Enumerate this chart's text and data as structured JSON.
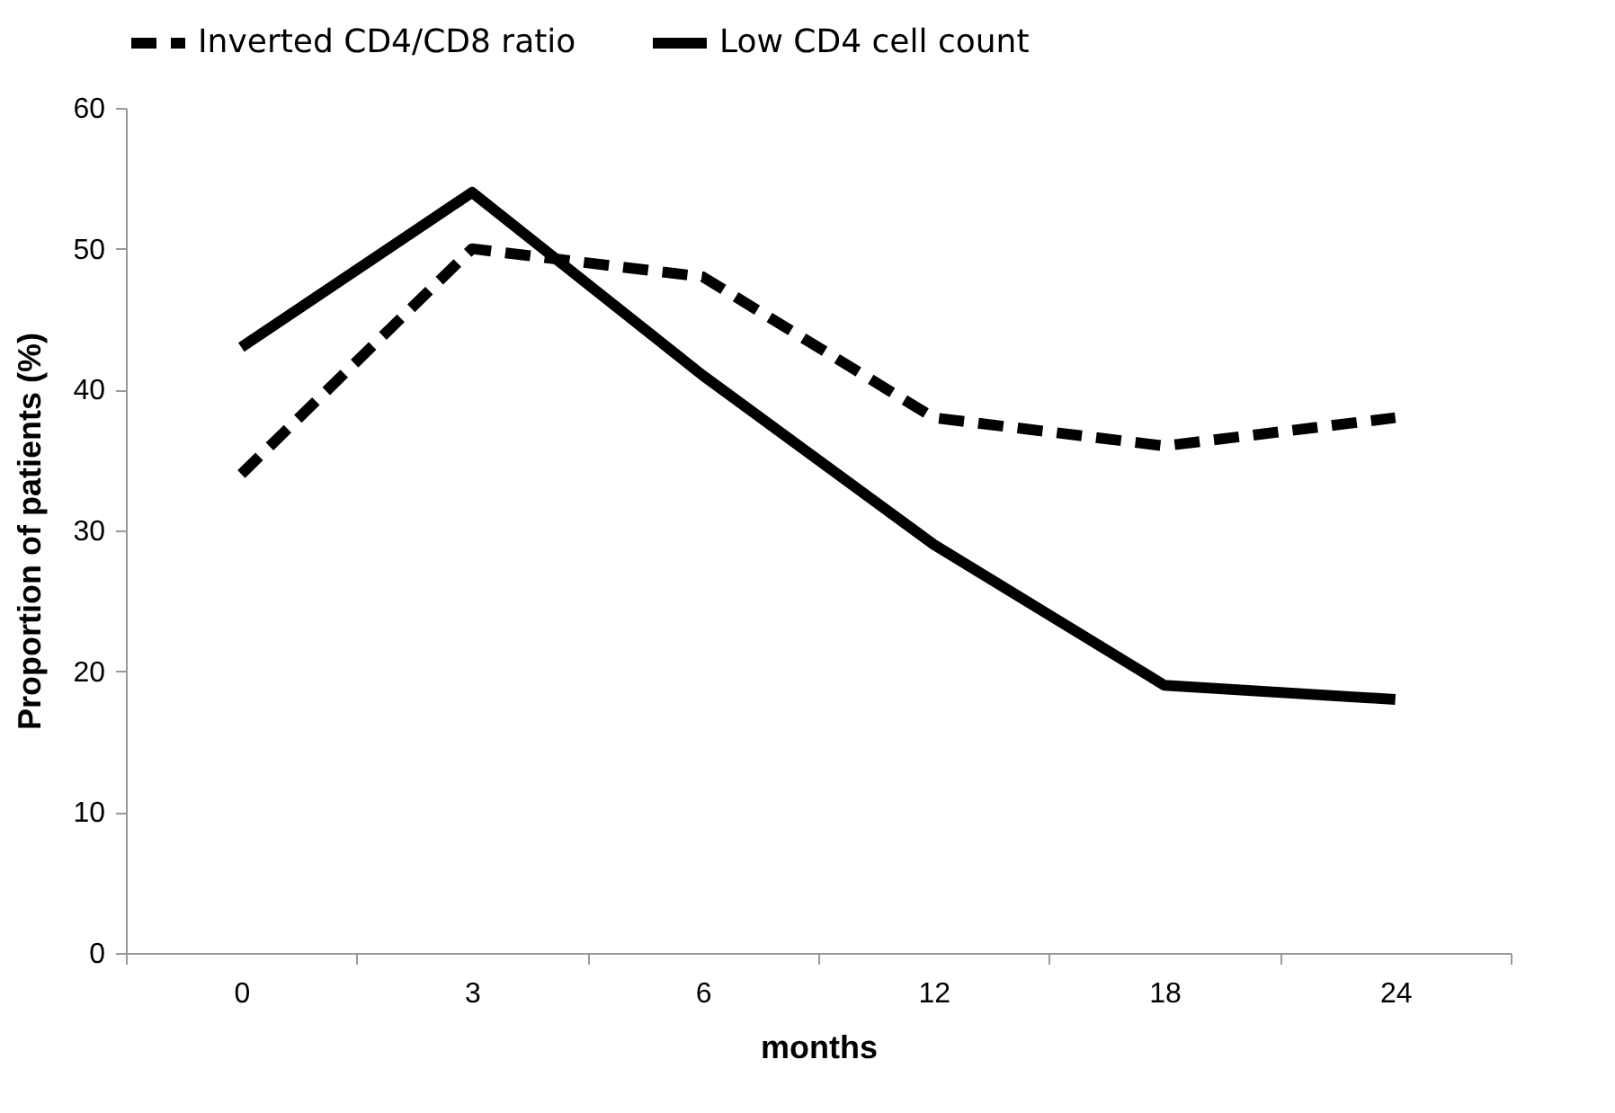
{
  "chart_data": {
    "type": "line",
    "xlabel": "months",
    "ylabel": "Proportion of patients (%)",
    "categories": [
      "0",
      "3",
      "6",
      "12",
      "18",
      "24"
    ],
    "series": [
      {
        "name": "Inverted CD4/CD8 ratio",
        "color": "#000000",
        "line_style": "dashed",
        "values": [
          34,
          50,
          48,
          38,
          36,
          38
        ]
      },
      {
        "name": "Low CD4 cell count",
        "color": "#000000",
        "line_style": "solid",
        "values": [
          43,
          54,
          41,
          29,
          19,
          18
        ]
      }
    ],
    "ylim": [
      0,
      60
    ],
    "yticks": [
      0,
      10,
      20,
      30,
      40,
      50,
      60
    ],
    "grid": false,
    "legend": "top",
    "marker": "none"
  }
}
